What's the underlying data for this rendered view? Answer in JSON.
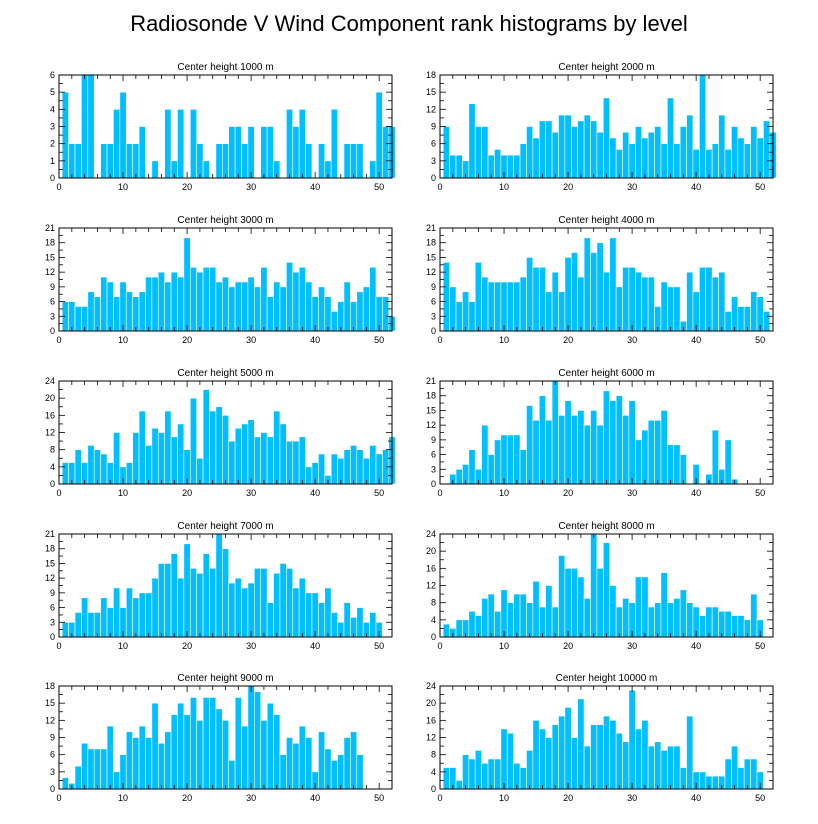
{
  "title": "Radiosonde V Wind Component rank histograms by level",
  "colors": {
    "bar": "#00BFFF",
    "axis": "#000000",
    "background": "#FFFFFF"
  },
  "chart_data": [
    {
      "type": "bar",
      "title": "Center height 1000 m",
      "ylim": [
        0,
        6.0
      ],
      "yticks": [
        0.0,
        1.0,
        2.0,
        3.0,
        4.0,
        5.0,
        6.0
      ],
      "xlim": [
        0,
        52
      ],
      "xticks": [
        0,
        10,
        20,
        30,
        40,
        50
      ],
      "values": [
        5,
        2,
        2,
        6,
        6,
        0,
        2,
        2,
        4,
        5,
        2,
        2,
        3,
        0,
        1,
        0,
        4,
        1,
        4,
        0,
        4,
        2,
        1,
        0,
        2,
        2,
        3,
        3,
        2,
        3,
        0,
        3,
        3,
        1,
        0,
        4,
        3,
        4,
        2,
        0,
        2,
        1,
        4,
        0,
        2,
        2,
        2,
        0,
        1,
        5,
        3,
        3
      ]
    },
    {
      "type": "bar",
      "title": "Center height 2000 m",
      "ylim": [
        0,
        18
      ],
      "yticks": [
        0,
        3,
        6,
        9,
        12,
        15,
        18
      ],
      "xlim": [
        0,
        52
      ],
      "xticks": [
        0,
        10,
        20,
        30,
        40,
        50
      ],
      "values": [
        9,
        4,
        4,
        3,
        13,
        9,
        9,
        4,
        5,
        4,
        4,
        4,
        6,
        9,
        7,
        10,
        10,
        8,
        11,
        11,
        9,
        10,
        11,
        10,
        8,
        14,
        7,
        5,
        8,
        6,
        9,
        7,
        8,
        9,
        6,
        14,
        6,
        9,
        11,
        5,
        18,
        5,
        6,
        11,
        5,
        9,
        7,
        6,
        9,
        7,
        10,
        8
      ]
    },
    {
      "type": "bar",
      "title": "Center height 3000 m",
      "ylim": [
        0,
        21
      ],
      "yticks": [
        0,
        3,
        6,
        9,
        12,
        15,
        18,
        21
      ],
      "xlim": [
        0,
        52
      ],
      "xticks": [
        0,
        10,
        20,
        30,
        40,
        50
      ],
      "values": [
        6,
        6,
        5,
        5,
        8,
        7,
        11,
        10,
        7,
        10,
        8,
        7,
        8,
        11,
        11,
        12,
        10,
        12,
        11,
        19,
        13,
        12,
        13,
        13,
        10,
        11,
        9,
        10,
        10,
        11,
        9,
        13,
        7,
        10,
        9,
        14,
        12,
        13,
        10,
        7,
        9,
        7,
        4,
        6,
        10,
        6,
        8,
        9,
        13,
        7,
        7,
        3
      ]
    },
    {
      "type": "bar",
      "title": "Center height 4000 m",
      "ylim": [
        0,
        21
      ],
      "yticks": [
        0,
        3,
        6,
        9,
        12,
        15,
        18,
        21
      ],
      "xlim": [
        0,
        52
      ],
      "xticks": [
        0,
        10,
        20,
        30,
        40,
        50
      ],
      "values": [
        14,
        9,
        6,
        8,
        6,
        14,
        11,
        10,
        10,
        10,
        10,
        10,
        11,
        15,
        13,
        13,
        8,
        12,
        8,
        15,
        16,
        11,
        19,
        16,
        18,
        12,
        19,
        9,
        13,
        13,
        12,
        11,
        11,
        5,
        10,
        9,
        9,
        2,
        12,
        8,
        13,
        13,
        11,
        12,
        4,
        7,
        5,
        5,
        8,
        7,
        4
      ]
    },
    {
      "type": "bar",
      "title": "Center height 5000 m",
      "ylim": [
        0,
        24
      ],
      "yticks": [
        0,
        4,
        8,
        12,
        16,
        20,
        24
      ],
      "xlim": [
        0,
        52
      ],
      "xticks": [
        0,
        10,
        20,
        30,
        40,
        50
      ],
      "values": [
        5,
        5,
        8,
        5,
        9,
        8,
        7,
        5,
        12,
        4,
        5,
        12,
        17,
        9,
        13,
        12,
        17,
        11,
        14,
        8,
        20,
        6,
        22,
        17,
        18,
        16,
        10,
        13,
        14,
        15,
        11,
        12,
        11,
        17,
        14,
        10,
        10,
        11,
        4,
        5,
        7,
        2,
        7,
        6,
        8,
        9,
        8,
        6,
        9,
        7,
        8,
        11
      ]
    },
    {
      "type": "bar",
      "title": "Center height 6000 m",
      "ylim": [
        0,
        21
      ],
      "yticks": [
        0,
        3,
        6,
        9,
        12,
        15,
        18,
        21
      ],
      "xlim": [
        0,
        52
      ],
      "xticks": [
        0,
        10,
        20,
        30,
        40,
        50
      ],
      "values": [
        0,
        2,
        3,
        4,
        7,
        3,
        12,
        6,
        9,
        10,
        10,
        10,
        7,
        16,
        13,
        18,
        13,
        21,
        14,
        17,
        14,
        15,
        12,
        15,
        12,
        19,
        17,
        18,
        14,
        17,
        9,
        11,
        13,
        13,
        15,
        8,
        8,
        6,
        0,
        4,
        0,
        2,
        11,
        3,
        9,
        1
      ]
    },
    {
      "type": "bar",
      "title": "Center height 7000 m",
      "ylim": [
        0,
        21
      ],
      "yticks": [
        0,
        3,
        6,
        9,
        12,
        15,
        18,
        21
      ],
      "xlim": [
        0,
        52
      ],
      "xticks": [
        0,
        10,
        20,
        30,
        40,
        50
      ],
      "values": [
        3,
        3,
        5,
        8,
        5,
        5,
        8,
        6,
        10,
        6,
        10,
        8,
        9,
        9,
        12,
        15,
        15,
        17,
        12,
        19,
        14,
        13,
        17,
        14,
        21,
        18,
        11,
        12,
        10,
        11,
        14,
        14,
        7,
        13,
        15,
        14,
        10,
        12,
        9,
        9,
        7,
        10,
        5,
        3,
        7,
        4,
        6,
        3,
        5,
        3
      ]
    },
    {
      "type": "bar",
      "title": "Center height 8000 m",
      "ylim": [
        0,
        24
      ],
      "yticks": [
        0,
        4,
        8,
        12,
        16,
        20,
        24
      ],
      "xlim": [
        0,
        52
      ],
      "xticks": [
        0,
        10,
        20,
        30,
        40,
        50
      ],
      "values": [
        3,
        2,
        4,
        4,
        6,
        5,
        9,
        10,
        6,
        11,
        8,
        10,
        10,
        8,
        13,
        7,
        12,
        7,
        19,
        16,
        16,
        14,
        9,
        24,
        16,
        22,
        12,
        7,
        9,
        8,
        14,
        14,
        7,
        8,
        15,
        8,
        9,
        11,
        8,
        7,
        5,
        7,
        7,
        6,
        6,
        5,
        5,
        4,
        10,
        4
      ]
    },
    {
      "type": "bar",
      "title": "Center height 9000 m",
      "ylim": [
        0,
        18
      ],
      "yticks": [
        0,
        3,
        6,
        9,
        12,
        15,
        18
      ],
      "xlim": [
        0,
        52
      ],
      "xticks": [
        0,
        10,
        20,
        30,
        40,
        50
      ],
      "values": [
        2,
        1,
        4,
        8,
        7,
        7,
        7,
        11,
        3,
        6,
        10,
        9,
        11,
        9,
        15,
        8,
        10,
        13,
        15,
        13,
        16,
        12,
        16,
        16,
        14,
        12,
        5,
        16,
        11,
        18,
        17,
        12,
        15,
        13,
        6,
        9,
        8,
        11,
        9,
        3,
        10,
        7,
        5,
        6,
        9,
        10,
        6
      ]
    },
    {
      "type": "bar",
      "title": "Center height 10000 m",
      "ylim": [
        0,
        24
      ],
      "yticks": [
        0,
        4,
        8,
        12,
        16,
        20,
        24
      ],
      "xlim": [
        0,
        52
      ],
      "xticks": [
        0,
        10,
        20,
        30,
        40,
        50
      ],
      "values": [
        5,
        5,
        2,
        8,
        7,
        9,
        6,
        7,
        7,
        14,
        13,
        6,
        5,
        9,
        16,
        14,
        12,
        15,
        17,
        19,
        12,
        21,
        10,
        15,
        15,
        17,
        16,
        13,
        11,
        23,
        14,
        16,
        10,
        11,
        9,
        10,
        10,
        5,
        17,
        4,
        4,
        3,
        3,
        3,
        7,
        10,
        5,
        7,
        7,
        4
      ]
    }
  ]
}
